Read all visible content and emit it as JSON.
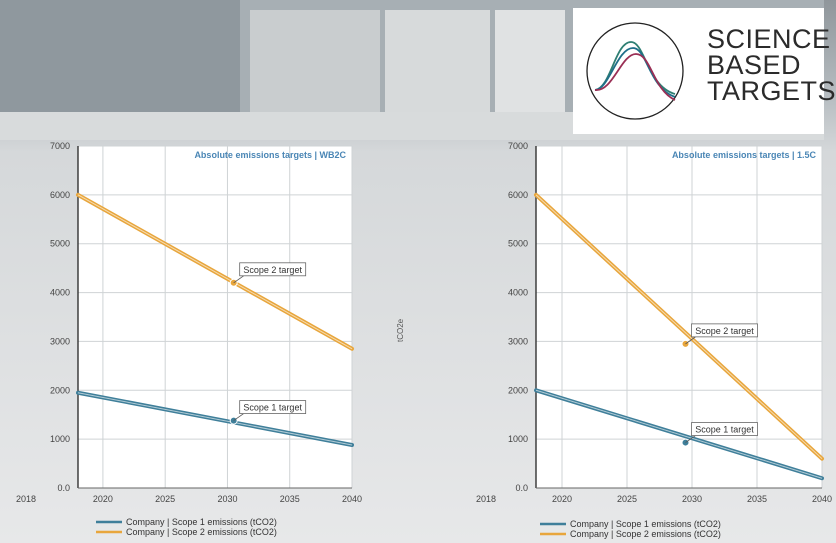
{
  "logo": {
    "lines": [
      "SCIENCE",
      "BASED",
      "TARGETS"
    ]
  },
  "middle_axis_label": "tCO2e",
  "chart_data": [
    {
      "type": "line",
      "title": "Absolute emissions targets | WB2C",
      "x": [
        2018,
        2020,
        2025,
        2030,
        2035,
        2040
      ],
      "xtick_labels": [
        "2018",
        "2020",
        "2025",
        "2030",
        "2035",
        "2040"
      ],
      "ylim": [
        0,
        7000
      ],
      "yticks": [
        0,
        1000,
        2000,
        3000,
        4000,
        5000,
        6000,
        7000
      ],
      "ytick_labels": [
        "0.0",
        "1000",
        "2000",
        "3000",
        "4000",
        "5000",
        "6000",
        "7000"
      ],
      "grid": true,
      "legend": "bottom",
      "series": [
        {
          "name": "Company | Scope 1 emissions (tCO2)",
          "color": "#3f7f9a",
          "x": [
            2018,
            2040
          ],
          "values": [
            1950,
            880
          ]
        },
        {
          "name": "Company | Scope 2 emissions (tCO2)",
          "color": "#e8a63c",
          "x": [
            2018,
            2040
          ],
          "values": [
            6000,
            2850
          ]
        }
      ],
      "annotations": [
        {
          "text": "Scope 2 target",
          "x": 2030.5,
          "y": 4200,
          "color": "#e8a63c"
        },
        {
          "text": "Scope 1 target",
          "x": 2030.5,
          "y": 1380,
          "color": "#3f7f9a"
        }
      ]
    },
    {
      "type": "line",
      "title": "Absolute emissions targets | 1.5C",
      "x": [
        2018,
        2020,
        2025,
        2030,
        2035,
        2040
      ],
      "xtick_labels": [
        "2018",
        "2020",
        "2025",
        "2030",
        "2035",
        "2040"
      ],
      "ylim": [
        0,
        7000
      ],
      "yticks": [
        0,
        1000,
        2000,
        3000,
        4000,
        5000,
        6000,
        7000
      ],
      "ytick_labels": [
        "0.0",
        "1000",
        "2000",
        "3000",
        "4000",
        "5000",
        "6000",
        "7000"
      ],
      "grid": true,
      "legend": "bottom",
      "series": [
        {
          "name": "Company | Scope 1 emissions (tCO2)",
          "color": "#3f7f9a",
          "x": [
            2018,
            2040
          ],
          "values": [
            2000,
            200
          ]
        },
        {
          "name": "Company | Scope 2 emissions (tCO2)",
          "color": "#e8a63c",
          "x": [
            2018,
            2040
          ],
          "values": [
            6000,
            600
          ]
        }
      ],
      "annotations": [
        {
          "text": "Scope 2 target",
          "x": 2029.5,
          "y": 2950,
          "color": "#e8a63c"
        },
        {
          "text": "Scope 1 target",
          "x": 2029.5,
          "y": 930,
          "color": "#3f7f9a"
        }
      ]
    }
  ]
}
